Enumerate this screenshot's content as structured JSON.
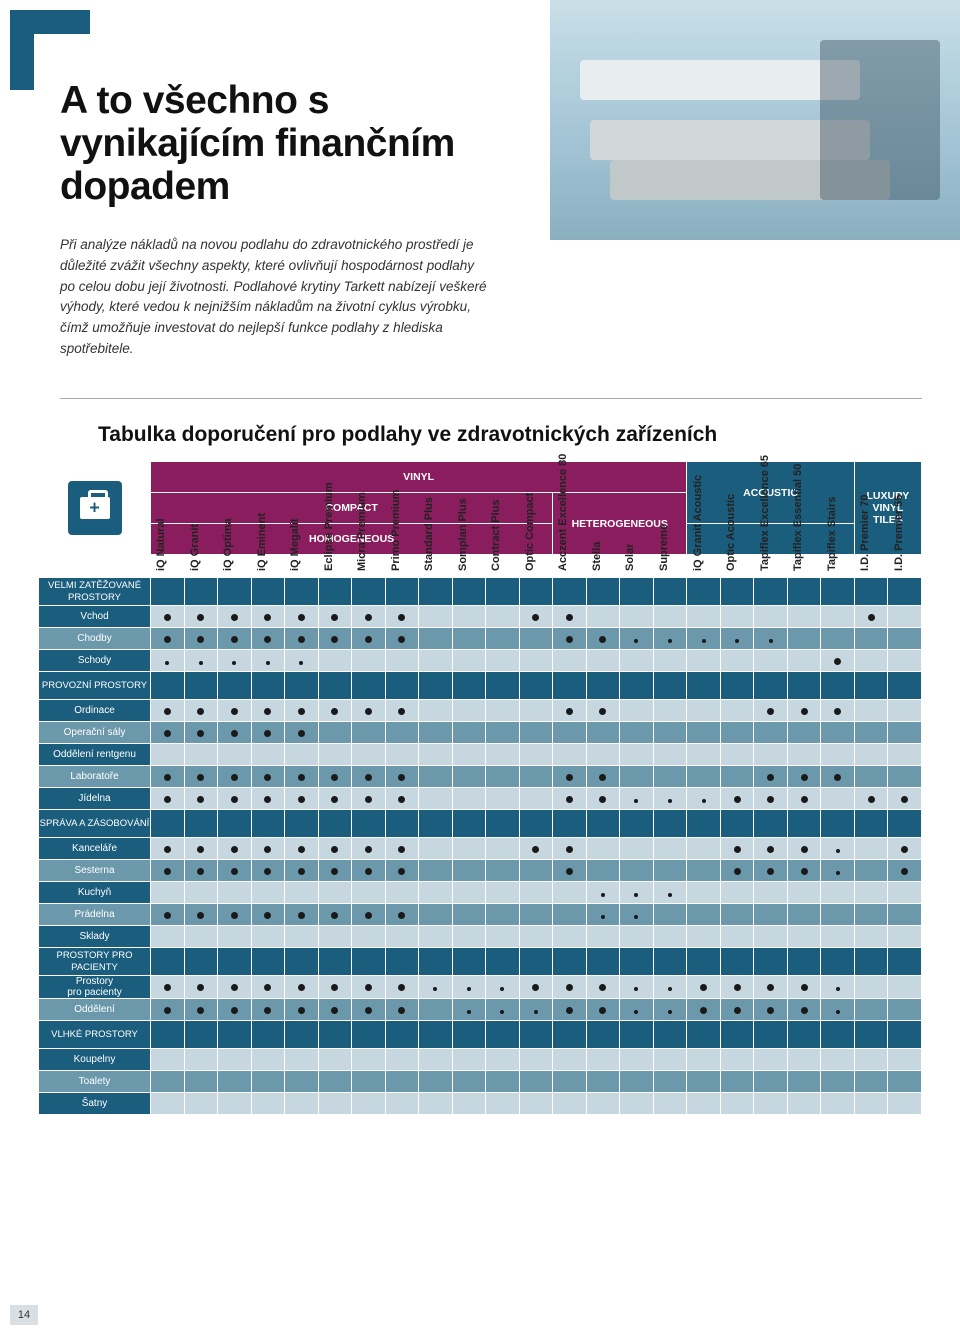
{
  "page_number": "14",
  "accent_color": "#1b5d7d",
  "magenta_color": "#8a1d5d",
  "title": "A to všechno s vynikajícím finančním dopadem",
  "intro": "Při analýze nákladů na novou podlahu do zdravotnického prostředí je důležité zvážit všechny aspekty, které ovlivňují hospodárnost podlahy po celou dobu její životnosti. Podlahové krytiny Tarkett nabízejí veškeré výhody, které vedou k nejnižším nákladům na životní cyklus výrobku, čímž umožňuje investovat do nejlepší funkce podlahy z hlediska spotřebitele.",
  "table_title": "Tabulka doporučení pro podlahy ve zdravotnických zařízeních",
  "cat": {
    "vinyl": "VINYL",
    "compact": "COMPACT",
    "homogeneous": "HOMOGENEOUS",
    "heterogeneous": "HETEROGENEOUS",
    "acoustic": "ACOUSTIC",
    "lvt": "LUXURY VINYL TILES"
  },
  "columns": [
    "iQ Natural",
    "iQ Granit",
    "iQ Optima",
    "iQ Eminent",
    "iQ Megalit",
    "Eclipse Premium",
    "Micra Premium",
    "Primo Premium",
    "Standard Plus",
    "Somplan Plus",
    "Contract Plus",
    "Optic Compact",
    "Acczent Excellence 80",
    "Stella",
    "Solar",
    "Supreme",
    "iQ Granit Acoustic",
    "Optic Acoustic",
    "Tapiflex Excellence 65",
    "Tapiflex Essential 50",
    "Tapiflex Stairs",
    "I.D. Premier 70",
    "I.D. Premier 55"
  ],
  "sections": [
    {
      "label": "VELMI ZATĚŽOVANÉ PROSTORY",
      "rows": [
        {
          "label": "Vchod",
          "band": "a",
          "cells": [
            "L",
            "L",
            "L",
            "L",
            "L",
            "L",
            "L",
            "L",
            "",
            "",
            "",
            "L",
            "L",
            "",
            "",
            "",
            "",
            "",
            "",
            "",
            "",
            "L",
            ""
          ]
        },
        {
          "label": "Chodby",
          "band": "b",
          "cells": [
            "L",
            "L",
            "L",
            "L",
            "L",
            "L",
            "L",
            "L",
            "",
            "",
            "",
            "",
            "L",
            "L",
            "S",
            "S",
            "S",
            "S",
            "S",
            "",
            "",
            "",
            ""
          ]
        },
        {
          "label": "Schody",
          "band": "a",
          "cells": [
            "S",
            "S",
            "S",
            "S",
            "S",
            "",
            "",
            "",
            "",
            "",
            "",
            "",
            "",
            "",
            "",
            "",
            "",
            "",
            "",
            "",
            "L",
            "",
            ""
          ]
        }
      ]
    },
    {
      "label": "PROVOZNÍ PROSTORY",
      "rows": [
        {
          "label": "Ordinace",
          "band": "a",
          "cells": [
            "L",
            "L",
            "L",
            "L",
            "L",
            "L",
            "L",
            "L",
            "",
            "",
            "",
            "",
            "L",
            "L",
            "",
            "",
            "",
            "",
            "L",
            "L",
            "L",
            "",
            ""
          ]
        },
        {
          "label": "Operační sály",
          "band": "b",
          "cells": [
            "L",
            "L",
            "L",
            "L",
            "L",
            "",
            "",
            "",
            "",
            "",
            "",
            "",
            "",
            "",
            "",
            "",
            "",
            "",
            "",
            "",
            "",
            "",
            ""
          ]
        },
        {
          "label": "Oddělení rentgenu",
          "band": "a",
          "cells": [
            "",
            "",
            "",
            "",
            "",
            "",
            "",
            "",
            "",
            "",
            "",
            "",
            "",
            "",
            "",
            "",
            "",
            "",
            "",
            "",
            "",
            "",
            ""
          ]
        },
        {
          "label": "Laboratoře",
          "band": "b",
          "cells": [
            "L",
            "L",
            "L",
            "L",
            "L",
            "L",
            "L",
            "L",
            "",
            "",
            "",
            "",
            "L",
            "L",
            "",
            "",
            "",
            "",
            "L",
            "L",
            "L",
            "",
            ""
          ]
        },
        {
          "label": "Jídelna",
          "band": "a",
          "cells": [
            "L",
            "L",
            "L",
            "L",
            "L",
            "L",
            "L",
            "L",
            "",
            "",
            "",
            "",
            "L",
            "L",
            "S",
            "S",
            "S",
            "L",
            "L",
            "L",
            "",
            "L",
            "L"
          ]
        }
      ]
    },
    {
      "label": "SPRÁVA A ZÁSOBOVÁNÍ",
      "rows": [
        {
          "label": "Kanceláře",
          "band": "a",
          "cells": [
            "L",
            "L",
            "L",
            "L",
            "L",
            "L",
            "L",
            "L",
            "",
            "",
            "",
            "L",
            "L",
            "",
            "",
            "",
            "",
            "L",
            "L",
            "L",
            "S",
            "",
            "L"
          ]
        },
        {
          "label": "Sesterna",
          "band": "b",
          "cells": [
            "L",
            "L",
            "L",
            "L",
            "L",
            "L",
            "L",
            "L",
            "",
            "",
            "",
            "",
            "L",
            "",
            "",
            "",
            "",
            "L",
            "L",
            "L",
            "S",
            "",
            "L"
          ]
        },
        {
          "label": "Kuchyň",
          "band": "a",
          "cells": [
            "",
            "",
            "",
            "",
            "",
            "",
            "",
            "",
            "",
            "",
            "",
            "",
            "",
            "S",
            "S",
            "S",
            "",
            "",
            "",
            "",
            "",
            "",
            ""
          ]
        },
        {
          "label": "Prádelna",
          "band": "b",
          "cells": [
            "L",
            "L",
            "L",
            "L",
            "L",
            "L",
            "L",
            "L",
            "",
            "",
            "",
            "",
            "",
            "S",
            "S",
            "",
            "",
            "",
            "",
            "",
            "",
            "",
            ""
          ]
        },
        {
          "label": "Sklady",
          "band": "a",
          "cells": [
            "",
            "",
            "",
            "",
            "",
            "",
            "",
            "",
            "",
            "",
            "",
            "",
            "",
            "",
            "",
            "",
            "",
            "",
            "",
            "",
            "",
            "",
            ""
          ]
        }
      ]
    },
    {
      "label": "PROSTORY PRO PACIENTY",
      "rows": [
        {
          "label": "Prostory pro pacienty",
          "band": "a",
          "cells": [
            "L",
            "L",
            "L",
            "L",
            "L",
            "L",
            "L",
            "L",
            "S",
            "S",
            "S",
            "L",
            "L",
            "L",
            "S",
            "S",
            "L",
            "L",
            "L",
            "L",
            "S",
            "",
            ""
          ]
        },
        {
          "label": "Oddělení",
          "band": "b",
          "cells": [
            "L",
            "L",
            "L",
            "L",
            "L",
            "L",
            "L",
            "L",
            "",
            "S",
            "S",
            "S",
            "L",
            "L",
            "S",
            "S",
            "L",
            "L",
            "L",
            "L",
            "S",
            "",
            ""
          ]
        }
      ]
    },
    {
      "label": "VLHKÉ PROSTORY",
      "rows": [
        {
          "label": "Koupelny",
          "band": "a",
          "cells": [
            "",
            "",
            "",
            "",
            "",
            "",
            "",
            "",
            "",
            "",
            "",
            "",
            "",
            "",
            "",
            "",
            "",
            "",
            "",
            "",
            "",
            "",
            ""
          ]
        },
        {
          "label": "Toalety",
          "band": "b",
          "cells": [
            "",
            "",
            "",
            "",
            "",
            "",
            "",
            "",
            "",
            "",
            "",
            "",
            "",
            "",
            "",
            "",
            "",
            "",
            "",
            "",
            "",
            "",
            ""
          ]
        },
        {
          "label": "Šatny",
          "band": "a",
          "cells": [
            "",
            "",
            "",
            "",
            "",
            "",
            "",
            "",
            "",
            "",
            "",
            "",
            "",
            "",
            "",
            "",
            "",
            "",
            "",
            "",
            "",
            "",
            ""
          ]
        }
      ]
    }
  ]
}
